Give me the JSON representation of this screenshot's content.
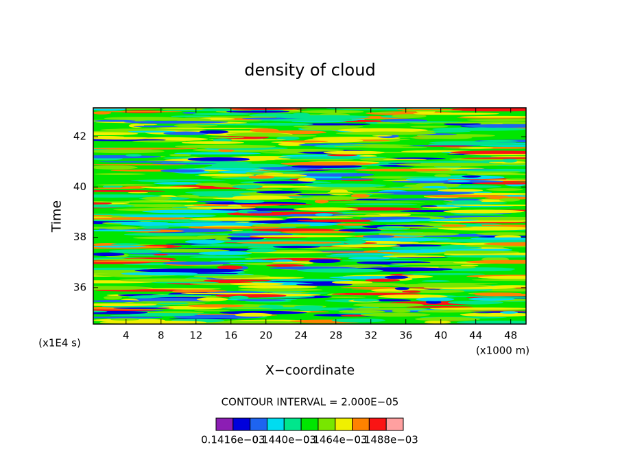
{
  "chart_data": {
    "type": "contour",
    "title": "density of cloud",
    "xlabel": "X−coordinate",
    "ylabel": "Time",
    "xunit": "(x1000 m)",
    "yunit": "(x1E4 s)",
    "xlim": [
      0.25,
      49.75
    ],
    "ylim": [
      34.55,
      43.15
    ],
    "xticks": [
      4,
      8,
      12,
      16,
      20,
      24,
      28,
      32,
      36,
      40,
      44,
      48
    ],
    "yticks": [
      36,
      38,
      40,
      42
    ],
    "contour_interval": "CONTOUR INTERVAL = 2.000E−05",
    "colors": [
      "#8c1eb4",
      "#0000dc",
      "#1e64f0",
      "#00dcf0",
      "#00e68c",
      "#00e600",
      "#78e600",
      "#f0f000",
      "#ff8200",
      "#fa1414",
      "#ffa0a0"
    ],
    "clim": [
      0.0001408,
      0.0001496
    ],
    "colorbar_ticks": [
      {
        "value": 0.0001416,
        "label": "0.1416e−03"
      },
      {
        "value": 0.000144,
        "label": "0.1440e−03"
      },
      {
        "value": 0.0001464,
        "label": "0.1464e−03"
      },
      {
        "value": 0.0001488,
        "label": "0.1488e−03"
      }
    ]
  }
}
